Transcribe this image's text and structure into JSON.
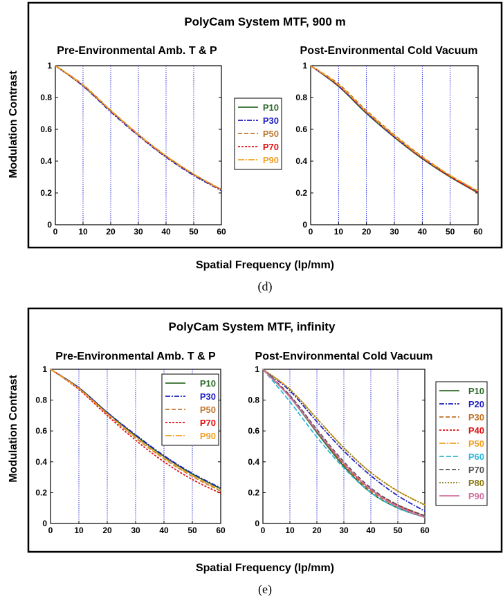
{
  "colors": {
    "P10": "#2e6b2a",
    "P20": "#1f1fc0",
    "P30": "#1f1fc0",
    "P30b": "#c07020",
    "P40": "#e01010",
    "P50": "#c07830",
    "P50b": "#f0a020",
    "P60": "#30b8d8",
    "P70": "#e01010",
    "P70b": "#555555",
    "P80": "#8a7a10",
    "P90": "#f0a020",
    "P90b": "#d070a0"
  },
  "figure_d": {
    "title": "PolyCam System MTF, 900 m",
    "ylabel": "Modulation Contrast",
    "xlabel": "Spatial Frequency (lp/mm)",
    "caption": "(d)"
  },
  "figure_e": {
    "title": "PolyCam System MTF, infinity",
    "ylabel": "Modulation Contrast",
    "xlabel": "Spatial Frequency (lp/mm)",
    "caption": "(e)"
  },
  "chart_data": [
    {
      "type": "line",
      "title": "Pre-Environmental Amb. T & P",
      "xlim": [
        0,
        60
      ],
      "ylim": [
        0,
        1
      ],
      "xticks": [
        0,
        10,
        20,
        30,
        40,
        50,
        60
      ],
      "yticks": [
        0,
        0.2,
        0.4,
        0.6,
        0.8,
        1
      ],
      "grid": "vertical",
      "legend": "outside-right",
      "x": [
        0,
        10,
        20,
        30,
        40,
        50,
        60
      ],
      "series": [
        {
          "name": "P10",
          "color_key": "P10",
          "dash": "none",
          "values": [
            1.0,
            0.875,
            0.715,
            0.565,
            0.43,
            0.315,
            0.22
          ]
        },
        {
          "name": "P30",
          "color_key": "P30",
          "dash": "7 2 2 2",
          "values": [
            1.0,
            0.872,
            0.71,
            0.56,
            0.425,
            0.31,
            0.215
          ]
        },
        {
          "name": "P50",
          "color_key": "P50",
          "dash": "6 3",
          "values": [
            1.0,
            0.88,
            0.72,
            0.568,
            0.433,
            0.318,
            0.222
          ]
        },
        {
          "name": "P70",
          "color_key": "P70",
          "dash": "3 2",
          "values": [
            1.0,
            0.876,
            0.716,
            0.565,
            0.43,
            0.316,
            0.218
          ]
        },
        {
          "name": "P90",
          "color_key": "P90",
          "dash": "9 2 2 2",
          "values": [
            1.0,
            0.878,
            0.718,
            0.567,
            0.432,
            0.318,
            0.22
          ]
        }
      ]
    },
    {
      "type": "line",
      "title": "Post-Environmental Cold Vacuum",
      "xlim": [
        0,
        60
      ],
      "ylim": [
        0,
        1
      ],
      "xticks": [
        0,
        10,
        20,
        30,
        40,
        50,
        60
      ],
      "yticks": [
        0,
        0.2,
        0.4,
        0.6,
        0.8,
        1
      ],
      "grid": "vertical",
      "legend": "none",
      "x": [
        0,
        10,
        20,
        30,
        40,
        50,
        60
      ],
      "series": [
        {
          "name": "P10",
          "color_key": "P10",
          "dash": "none",
          "values": [
            1.0,
            0.87,
            0.7,
            0.55,
            0.415,
            0.3,
            0.2
          ]
        },
        {
          "name": "P30",
          "color_key": "P30",
          "dash": "7 2 2 2",
          "values": [
            1.0,
            0.872,
            0.705,
            0.553,
            0.42,
            0.305,
            0.205
          ]
        },
        {
          "name": "P50",
          "color_key": "P50",
          "dash": "6 3",
          "values": [
            1.0,
            0.885,
            0.718,
            0.565,
            0.428,
            0.31,
            0.21
          ]
        },
        {
          "name": "P70",
          "color_key": "P70",
          "dash": "3 2",
          "values": [
            1.0,
            0.875,
            0.708,
            0.555,
            0.42,
            0.303,
            0.2
          ]
        },
        {
          "name": "P90",
          "color_key": "P90",
          "dash": "9 2 2 2",
          "values": [
            1.0,
            0.88,
            0.712,
            0.56,
            0.425,
            0.31,
            0.212
          ]
        }
      ]
    },
    {
      "type": "line",
      "title": "Pre-Environmental Amb. T & P",
      "xlim": [
        0,
        60
      ],
      "ylim": [
        0,
        1
      ],
      "xticks": [
        0,
        10,
        20,
        30,
        40,
        50,
        60
      ],
      "yticks": [
        0,
        0.2,
        0.4,
        0.6,
        0.8,
        1
      ],
      "grid": "vertical",
      "legend": "top-right",
      "x": [
        0,
        10,
        20,
        30,
        40,
        50,
        60
      ],
      "series": [
        {
          "name": "P10",
          "color_key": "P10",
          "dash": "none",
          "values": [
            1.0,
            0.88,
            0.72,
            0.57,
            0.435,
            0.32,
            0.225
          ]
        },
        {
          "name": "P30",
          "color_key": "P30",
          "dash": "7 2 2 2",
          "values": [
            1.0,
            0.88,
            0.72,
            0.575,
            0.44,
            0.325,
            0.23
          ]
        },
        {
          "name": "P50",
          "color_key": "P50",
          "dash": "6 3",
          "values": [
            1.0,
            0.875,
            0.71,
            0.555,
            0.42,
            0.305,
            0.21
          ]
        },
        {
          "name": "P70",
          "color_key": "P70",
          "dash": "3 2",
          "values": [
            1.0,
            0.87,
            0.7,
            0.54,
            0.4,
            0.285,
            0.195
          ]
        },
        {
          "name": "P90",
          "color_key": "P90",
          "dash": "9 2 2 2",
          "values": [
            1.0,
            0.875,
            0.712,
            0.56,
            0.425,
            0.31,
            0.215
          ]
        }
      ]
    },
    {
      "type": "line",
      "title": "Post-Environmental Cold Vacuum",
      "xlim": [
        0,
        60
      ],
      "ylim": [
        0,
        1
      ],
      "xticks": [
        0,
        10,
        20,
        30,
        40,
        50,
        60
      ],
      "yticks": [
        0,
        0.2,
        0.4,
        0.6,
        0.8,
        1
      ],
      "grid": "vertical",
      "legend": "outside-right",
      "x": [
        0,
        10,
        20,
        30,
        40,
        50,
        60
      ],
      "series": [
        {
          "name": "P10",
          "color_key": "P10",
          "dash": "none",
          "values": [
            1.0,
            0.82,
            0.59,
            0.37,
            0.2,
            0.1,
            0.04
          ]
        },
        {
          "name": "P20",
          "color_key": "P20",
          "dash": "7 2 2 2",
          "values": [
            1.0,
            0.86,
            0.66,
            0.47,
            0.31,
            0.18,
            0.08
          ]
        },
        {
          "name": "P30",
          "color_key": "P30b",
          "dash": "6 3",
          "values": [
            1.0,
            0.83,
            0.6,
            0.38,
            0.21,
            0.11,
            0.05
          ]
        },
        {
          "name": "P40",
          "color_key": "P40",
          "dash": "3 2",
          "values": [
            1.0,
            0.825,
            0.6,
            0.385,
            0.22,
            0.12,
            0.05
          ]
        },
        {
          "name": "P50",
          "color_key": "P50b",
          "dash": "9 2 2 2",
          "values": [
            1.0,
            0.87,
            0.68,
            0.49,
            0.33,
            0.21,
            0.12
          ]
        },
        {
          "name": "P60",
          "color_key": "P60",
          "dash": "7 3",
          "values": [
            1.0,
            0.79,
            0.56,
            0.36,
            0.2,
            0.1,
            0.04
          ]
        },
        {
          "name": "P70",
          "color_key": "P70b",
          "dash": "6 3",
          "values": [
            1.0,
            0.83,
            0.61,
            0.4,
            0.23,
            0.12,
            0.05
          ]
        },
        {
          "name": "P80",
          "color_key": "P80",
          "dash": "2 2",
          "values": [
            1.0,
            0.87,
            0.68,
            0.49,
            0.33,
            0.21,
            0.12
          ]
        },
        {
          "name": "P90",
          "color_key": "P90b",
          "dash": "none",
          "values": [
            1.0,
            0.82,
            0.6,
            0.39,
            0.22,
            0.11,
            0.04
          ]
        }
      ]
    }
  ]
}
